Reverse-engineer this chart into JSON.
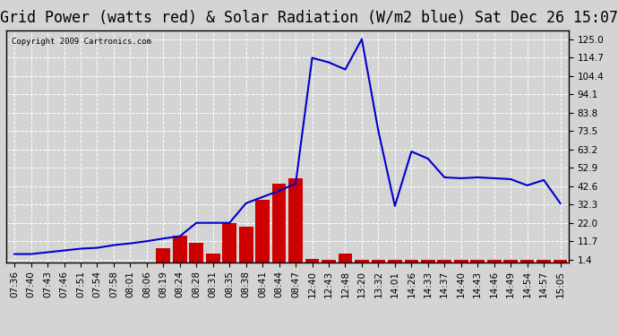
{
  "title": "Grid Power (watts red) & Solar Radiation (W/m2 blue) Sat Dec 26 15:07",
  "copyright": "Copyright 2009 Cartronics.com",
  "background_color": "#d4d4d4",
  "plot_bg_color": "#d4d4d4",
  "y_ticks": [
    1.4,
    11.7,
    22.0,
    32.3,
    42.6,
    52.9,
    63.2,
    73.5,
    83.8,
    94.1,
    104.4,
    114.7,
    125.0
  ],
  "x_labels": [
    "07:36",
    "07:40",
    "07:43",
    "07:46",
    "07:51",
    "07:54",
    "07:58",
    "08:01",
    "08:06",
    "08:19",
    "08:24",
    "08:28",
    "08:31",
    "08:35",
    "08:38",
    "08:41",
    "08:44",
    "08:47",
    "12:40",
    "12:43",
    "12:48",
    "13:20",
    "13:32",
    "14:01",
    "14:26",
    "14:33",
    "14:37",
    "14:40",
    "14:43",
    "14:46",
    "14:49",
    "14:54",
    "14:57",
    "15:05"
  ],
  "blue_line": [
    4.5,
    4.5,
    5.5,
    6.5,
    7.5,
    8.0,
    9.5,
    10.5,
    11.7,
    13.2,
    14.5,
    22.0,
    22.0,
    22.0,
    33.0,
    36.5,
    40.0,
    44.0,
    114.5,
    112.0,
    108.0,
    125.0,
    73.5,
    31.5,
    62.0,
    58.0,
    47.5,
    47.0,
    47.5,
    47.0,
    46.5,
    43.0,
    46.0,
    33.0
  ],
  "red_bars": [
    0,
    0,
    0,
    0,
    0,
    0,
    0,
    0,
    0,
    8.0,
    15.0,
    11.0,
    5.0,
    22.0,
    20.0,
    35.0,
    44.0,
    47.0,
    2.0,
    1.5,
    5.0,
    1.4,
    1.4,
    1.4,
    1.4,
    1.4,
    1.4,
    1.4,
    1.4,
    1.4,
    1.4,
    1.4,
    1.4,
    1.4
  ],
  "ylim": [
    0,
    130
  ],
  "line_color": "#0000cc",
  "bar_color": "#cc0000",
  "grid_color": "#ffffff",
  "title_fontsize": 12,
  "tick_fontsize": 7.5
}
